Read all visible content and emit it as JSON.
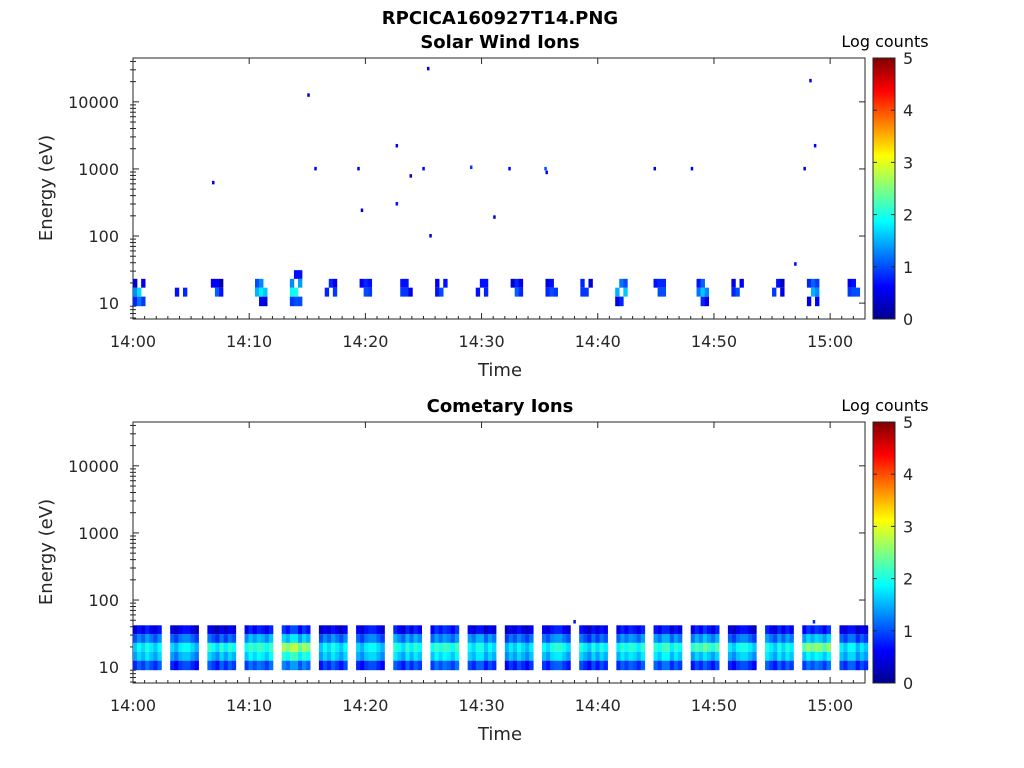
{
  "figure": {
    "title": "RPCICA160927T14.PNG"
  },
  "chart_data": [
    {
      "type": "heatmap",
      "title": "Solar Wind Ions",
      "xlabel": "Time",
      "ylabel": "Energy (eV)",
      "x_range_minutes": [
        0,
        63
      ],
      "x_ticks": [
        {
          "label": "14:00",
          "minute": 0
        },
        {
          "label": "14:10",
          "minute": 10
        },
        {
          "label": "14:20",
          "minute": 20
        },
        {
          "label": "14:30",
          "minute": 30
        },
        {
          "label": "14:40",
          "minute": 40
        },
        {
          "label": "14:50",
          "minute": 50
        },
        {
          "label": "15:00",
          "minute": 60
        }
      ],
      "y_scale": "log",
      "y_range": [
        5.8,
        45000
      ],
      "y_ticks": [
        {
          "label": "10",
          "value": 10
        },
        {
          "label": "100",
          "value": 100
        },
        {
          "label": "1000",
          "value": 1000
        },
        {
          "label": "10000",
          "value": 10000
        }
      ],
      "colorbar": {
        "label": "Log counts",
        "range": [
          0,
          5
        ],
        "ticks": [
          "0",
          "1",
          "2",
          "3",
          "4",
          "5"
        ],
        "colormap": "jet"
      },
      "bursts": [
        {
          "t": 0.0,
          "levels": [
            1.0,
            1.5,
            0.6
          ]
        },
        {
          "t": 3.6,
          "levels": [
            0,
            0.7,
            0
          ]
        },
        {
          "t": 6.7,
          "levels": [
            0,
            0.9,
            0.4
          ]
        },
        {
          "t": 10.5,
          "levels": [
            0.4,
            1.6,
            1.1
          ]
        },
        {
          "t": 13.5,
          "levels": [
            0.8,
            1.8,
            1.2,
            0.5
          ]
        },
        {
          "t": 16.5,
          "levels": [
            0,
            1.0,
            0.6
          ]
        },
        {
          "t": 19.5,
          "levels": [
            0,
            0.8,
            0.6
          ]
        },
        {
          "t": 23.0,
          "levels": [
            0,
            0.7,
            0.5
          ]
        },
        {
          "t": 26.0,
          "levels": [
            0,
            0.8,
            0.7
          ]
        },
        {
          "t": 29.5,
          "levels": [
            0,
            0.6,
            0.5
          ]
        },
        {
          "t": 32.5,
          "levels": [
            0,
            0.9,
            0.6
          ]
        },
        {
          "t": 35.5,
          "levels": [
            0,
            0.8,
            0.5
          ]
        },
        {
          "t": 38.5,
          "levels": [
            0,
            0.7,
            0.6
          ]
        },
        {
          "t": 41.5,
          "levels": [
            0.6,
            1.6,
            1.0
          ]
        },
        {
          "t": 44.8,
          "levels": [
            0,
            0.8,
            0.6
          ]
        },
        {
          "t": 48.5,
          "levels": [
            0.6,
            1.4,
            0.9
          ]
        },
        {
          "t": 51.5,
          "levels": [
            0,
            0.8,
            0.5
          ]
        },
        {
          "t": 55.0,
          "levels": [
            0,
            0.7,
            0.5
          ]
        },
        {
          "t": 58.0,
          "levels": [
            0.6,
            1.3,
            0.9
          ]
        },
        {
          "t": 61.5,
          "levels": [
            0,
            0.8,
            0.5
          ]
        }
      ],
      "points": [
        {
          "t": 6.8,
          "e": 620,
          "z": 0.5
        },
        {
          "t": 15.0,
          "e": 12500,
          "z": 0.4
        },
        {
          "t": 15.6,
          "e": 1000,
          "z": 0.6
        },
        {
          "t": 19.3,
          "e": 1000,
          "z": 0.5
        },
        {
          "t": 19.6,
          "e": 240,
          "z": 0.4
        },
        {
          "t": 22.6,
          "e": 2200,
          "z": 0.6
        },
        {
          "t": 22.6,
          "e": 300,
          "z": 0.7
        },
        {
          "t": 23.8,
          "e": 780,
          "z": 0.5
        },
        {
          "t": 24.9,
          "e": 1000,
          "z": 0.6
        },
        {
          "t": 25.3,
          "e": 31000,
          "z": 0.4
        },
        {
          "t": 25.5,
          "e": 100,
          "z": 0.5
        },
        {
          "t": 29.0,
          "e": 1050,
          "z": 0.9
        },
        {
          "t": 31.0,
          "e": 190,
          "z": 0.5
        },
        {
          "t": 32.3,
          "e": 1000,
          "z": 0.6
        },
        {
          "t": 35.4,
          "e": 1000,
          "z": 1.0
        },
        {
          "t": 35.5,
          "e": 880,
          "z": 0.6
        },
        {
          "t": 44.8,
          "e": 1000,
          "z": 0.5
        },
        {
          "t": 48.0,
          "e": 1000,
          "z": 0.5
        },
        {
          "t": 56.9,
          "e": 38,
          "z": 0.5
        },
        {
          "t": 57.7,
          "e": 1000,
          "z": 0.5
        },
        {
          "t": 58.2,
          "e": 20500,
          "z": 0.6
        },
        {
          "t": 58.6,
          "e": 2200,
          "z": 0.6
        }
      ]
    },
    {
      "type": "heatmap",
      "title": "Cometary Ions",
      "xlabel": "Time",
      "ylabel": "Energy (eV)",
      "x_range_minutes": [
        0,
        63
      ],
      "x_ticks": [
        {
          "label": "14:00",
          "minute": 0
        },
        {
          "label": "14:10",
          "minute": 10
        },
        {
          "label": "14:20",
          "minute": 20
        },
        {
          "label": "14:30",
          "minute": 30
        },
        {
          "label": "14:40",
          "minute": 40
        },
        {
          "label": "14:50",
          "minute": 50
        },
        {
          "label": "15:00",
          "minute": 60
        }
      ],
      "y_scale": "log",
      "y_range": [
        5.8,
        45000
      ],
      "y_ticks": [
        {
          "label": "10",
          "value": 10
        },
        {
          "label": "100",
          "value": 100
        },
        {
          "label": "1000",
          "value": 1000
        },
        {
          "label": "10000",
          "value": 10000
        }
      ],
      "colorbar": {
        "label": "Log counts",
        "range": [
          0,
          5
        ],
        "ticks": [
          "0",
          "1",
          "2",
          "3",
          "4",
          "5"
        ],
        "colormap": "jet"
      },
      "bursts": [
        {
          "t": 0.0,
          "levels": [
            1.0,
            1.6,
            1.8,
            1.2,
            0.6
          ]
        },
        {
          "t": 3.2,
          "levels": [
            0.8,
            1.4,
            1.7,
            1.1,
            0.5
          ]
        },
        {
          "t": 6.4,
          "levels": [
            0.9,
            1.5,
            1.9,
            1.0,
            0.4
          ]
        },
        {
          "t": 9.6,
          "levels": [
            1.0,
            1.7,
            2.0,
            1.4,
            0.6
          ]
        },
        {
          "t": 12.8,
          "levels": [
            1.2,
            2.0,
            2.6,
            1.6,
            0.8
          ]
        },
        {
          "t": 16.0,
          "levels": [
            0.9,
            1.6,
            1.8,
            1.2,
            0.5
          ]
        },
        {
          "t": 19.2,
          "levels": [
            0.8,
            1.5,
            1.7,
            1.1,
            0.6
          ]
        },
        {
          "t": 22.4,
          "levels": [
            0.9,
            1.6,
            1.9,
            1.3,
            0.6
          ]
        },
        {
          "t": 25.6,
          "levels": [
            1.0,
            1.7,
            2.0,
            1.2,
            0.7
          ]
        },
        {
          "t": 28.8,
          "levels": [
            0.9,
            1.6,
            1.8,
            1.3,
            0.5
          ]
        },
        {
          "t": 32.0,
          "levels": [
            0.8,
            1.5,
            1.7,
            1.1,
            0.5
          ]
        },
        {
          "t": 35.2,
          "levels": [
            0.9,
            1.6,
            1.9,
            1.2,
            0.6
          ]
        },
        {
          "t": 38.4,
          "levels": [
            0.8,
            1.5,
            1.8,
            1.0,
            0.5
          ]
        },
        {
          "t": 41.6,
          "levels": [
            0.9,
            1.6,
            1.9,
            1.2,
            0.6
          ]
        },
        {
          "t": 44.8,
          "levels": [
            1.0,
            1.7,
            2.0,
            1.3,
            0.6
          ]
        },
        {
          "t": 48.0,
          "levels": [
            0.9,
            1.6,
            2.2,
            1.4,
            0.7
          ]
        },
        {
          "t": 51.2,
          "levels": [
            0.8,
            1.5,
            1.8,
            1.1,
            0.5
          ]
        },
        {
          "t": 54.4,
          "levels": [
            0.9,
            1.6,
            1.8,
            1.2,
            0.6
          ]
        },
        {
          "t": 57.6,
          "levels": [
            1.0,
            1.7,
            2.4,
            1.5,
            0.7
          ]
        },
        {
          "t": 60.8,
          "levels": [
            0.9,
            1.5,
            1.7,
            1.0,
            0.5
          ]
        }
      ],
      "points": [
        {
          "t": 37.9,
          "e": 47,
          "z": 0.7
        },
        {
          "t": 58.5,
          "e": 47,
          "z": 0.8
        }
      ]
    }
  ]
}
